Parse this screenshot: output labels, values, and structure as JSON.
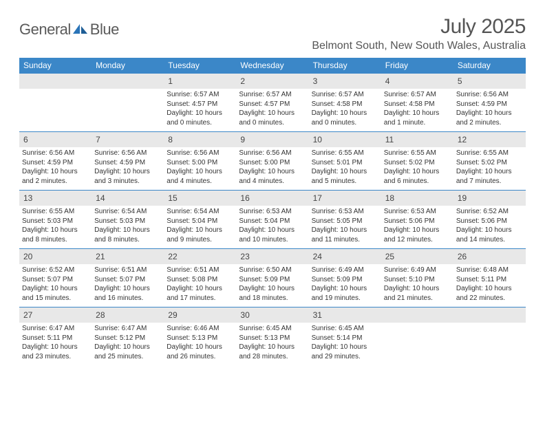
{
  "brand": {
    "name_a": "General",
    "name_b": "Blue"
  },
  "title": "July 2025",
  "location": "Belmont South, New South Wales, Australia",
  "colors": {
    "header_bg": "#3b87c8",
    "header_text": "#ffffff",
    "daynum_bg": "#e8e8e8",
    "rule": "#3b87c8",
    "text": "#333333",
    "title_text": "#555555"
  },
  "weekdays": [
    "Sunday",
    "Monday",
    "Tuesday",
    "Wednesday",
    "Thursday",
    "Friday",
    "Saturday"
  ],
  "weeks": [
    [
      {
        "n": "",
        "empty": true
      },
      {
        "n": "",
        "empty": true
      },
      {
        "n": "1",
        "sunrise": "6:57 AM",
        "sunset": "4:57 PM",
        "daylight": "10 hours and 0 minutes."
      },
      {
        "n": "2",
        "sunrise": "6:57 AM",
        "sunset": "4:57 PM",
        "daylight": "10 hours and 0 minutes."
      },
      {
        "n": "3",
        "sunrise": "6:57 AM",
        "sunset": "4:58 PM",
        "daylight": "10 hours and 0 minutes."
      },
      {
        "n": "4",
        "sunrise": "6:57 AM",
        "sunset": "4:58 PM",
        "daylight": "10 hours and 1 minute."
      },
      {
        "n": "5",
        "sunrise": "6:56 AM",
        "sunset": "4:59 PM",
        "daylight": "10 hours and 2 minutes."
      }
    ],
    [
      {
        "n": "6",
        "sunrise": "6:56 AM",
        "sunset": "4:59 PM",
        "daylight": "10 hours and 2 minutes."
      },
      {
        "n": "7",
        "sunrise": "6:56 AM",
        "sunset": "4:59 PM",
        "daylight": "10 hours and 3 minutes."
      },
      {
        "n": "8",
        "sunrise": "6:56 AM",
        "sunset": "5:00 PM",
        "daylight": "10 hours and 4 minutes."
      },
      {
        "n": "9",
        "sunrise": "6:56 AM",
        "sunset": "5:00 PM",
        "daylight": "10 hours and 4 minutes."
      },
      {
        "n": "10",
        "sunrise": "6:55 AM",
        "sunset": "5:01 PM",
        "daylight": "10 hours and 5 minutes."
      },
      {
        "n": "11",
        "sunrise": "6:55 AM",
        "sunset": "5:02 PM",
        "daylight": "10 hours and 6 minutes."
      },
      {
        "n": "12",
        "sunrise": "6:55 AM",
        "sunset": "5:02 PM",
        "daylight": "10 hours and 7 minutes."
      }
    ],
    [
      {
        "n": "13",
        "sunrise": "6:55 AM",
        "sunset": "5:03 PM",
        "daylight": "10 hours and 8 minutes."
      },
      {
        "n": "14",
        "sunrise": "6:54 AM",
        "sunset": "5:03 PM",
        "daylight": "10 hours and 8 minutes."
      },
      {
        "n": "15",
        "sunrise": "6:54 AM",
        "sunset": "5:04 PM",
        "daylight": "10 hours and 9 minutes."
      },
      {
        "n": "16",
        "sunrise": "6:53 AM",
        "sunset": "5:04 PM",
        "daylight": "10 hours and 10 minutes."
      },
      {
        "n": "17",
        "sunrise": "6:53 AM",
        "sunset": "5:05 PM",
        "daylight": "10 hours and 11 minutes."
      },
      {
        "n": "18",
        "sunrise": "6:53 AM",
        "sunset": "5:06 PM",
        "daylight": "10 hours and 12 minutes."
      },
      {
        "n": "19",
        "sunrise": "6:52 AM",
        "sunset": "5:06 PM",
        "daylight": "10 hours and 14 minutes."
      }
    ],
    [
      {
        "n": "20",
        "sunrise": "6:52 AM",
        "sunset": "5:07 PM",
        "daylight": "10 hours and 15 minutes."
      },
      {
        "n": "21",
        "sunrise": "6:51 AM",
        "sunset": "5:07 PM",
        "daylight": "10 hours and 16 minutes."
      },
      {
        "n": "22",
        "sunrise": "6:51 AM",
        "sunset": "5:08 PM",
        "daylight": "10 hours and 17 minutes."
      },
      {
        "n": "23",
        "sunrise": "6:50 AM",
        "sunset": "5:09 PM",
        "daylight": "10 hours and 18 minutes."
      },
      {
        "n": "24",
        "sunrise": "6:49 AM",
        "sunset": "5:09 PM",
        "daylight": "10 hours and 19 minutes."
      },
      {
        "n": "25",
        "sunrise": "6:49 AM",
        "sunset": "5:10 PM",
        "daylight": "10 hours and 21 minutes."
      },
      {
        "n": "26",
        "sunrise": "6:48 AM",
        "sunset": "5:11 PM",
        "daylight": "10 hours and 22 minutes."
      }
    ],
    [
      {
        "n": "27",
        "sunrise": "6:47 AM",
        "sunset": "5:11 PM",
        "daylight": "10 hours and 23 minutes."
      },
      {
        "n": "28",
        "sunrise": "6:47 AM",
        "sunset": "5:12 PM",
        "daylight": "10 hours and 25 minutes."
      },
      {
        "n": "29",
        "sunrise": "6:46 AM",
        "sunset": "5:13 PM",
        "daylight": "10 hours and 26 minutes."
      },
      {
        "n": "30",
        "sunrise": "6:45 AM",
        "sunset": "5:13 PM",
        "daylight": "10 hours and 28 minutes."
      },
      {
        "n": "31",
        "sunrise": "6:45 AM",
        "sunset": "5:14 PM",
        "daylight": "10 hours and 29 minutes."
      },
      {
        "n": "",
        "empty": true
      },
      {
        "n": "",
        "empty": true
      }
    ]
  ],
  "labels": {
    "sunrise": "Sunrise:",
    "sunset": "Sunset:",
    "daylight": "Daylight:"
  }
}
